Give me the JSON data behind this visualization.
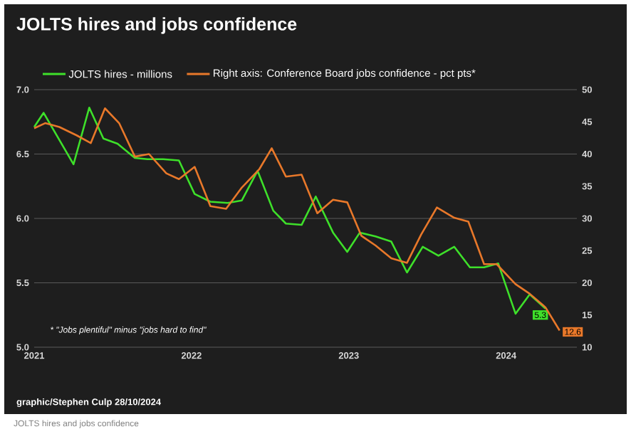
{
  "chart_data": {
    "type": "line",
    "title": "JOLTS hires and jobs confidence",
    "series": [
      {
        "name": "JOLTS hires - millions",
        "color": "#3ee02a",
        "x": [
          2021.0,
          2021.06,
          2021.25,
          2021.35,
          2021.44,
          2021.53,
          2021.64,
          2021.72,
          2021.82,
          2021.92,
          2022.02,
          2022.12,
          2022.23,
          2022.32,
          2022.42,
          2022.52,
          2022.6,
          2022.7,
          2022.79,
          2022.9,
          2022.99,
          2023.07,
          2023.17,
          2023.27,
          2023.37,
          2023.47,
          2023.57,
          2023.67,
          2023.77,
          2023.86,
          2023.95,
          2024.06,
          2024.15,
          2024.25
        ],
        "values": [
          6.71,
          6.82,
          6.42,
          6.86,
          6.62,
          6.58,
          6.47,
          6.46,
          6.46,
          6.45,
          6.19,
          6.13,
          6.12,
          6.14,
          6.37,
          6.06,
          5.96,
          5.95,
          6.17,
          5.89,
          5.74,
          5.89,
          5.86,
          5.82,
          5.58,
          5.78,
          5.71,
          5.78,
          5.62,
          5.62,
          5.65,
          5.26,
          5.41,
          5.3
        ],
        "value_labels": [
          null,
          null,
          null,
          null,
          null,
          null,
          null,
          null,
          null,
          null,
          null,
          null,
          null,
          null,
          null,
          null,
          null,
          null,
          null,
          null,
          null,
          null,
          null,
          null,
          null,
          null,
          null,
          null,
          null,
          null,
          null,
          null,
          null,
          "5.3"
        ]
      },
      {
        "name": "Right axis: Conference Board jobs confidence - pct pts*",
        "color": "#e8782a",
        "axis": "y2",
        "x": [
          2021.0,
          2021.07,
          2021.16,
          2021.27,
          2021.36,
          2021.45,
          2021.54,
          2021.64,
          2021.73,
          2021.84,
          2021.92,
          2022.02,
          2022.12,
          2022.22,
          2022.32,
          2022.43,
          2022.51,
          2022.6,
          2022.7,
          2022.8,
          2022.9,
          2022.99,
          2023.08,
          2023.17,
          2023.27,
          2023.37,
          2023.46,
          2023.56,
          2023.67,
          2023.76,
          2023.86,
          2023.94,
          2024.06,
          2024.15,
          2024.25,
          2024.34
        ],
        "values": [
          44.0,
          44.8,
          44.2,
          42.9,
          41.7,
          47.1,
          44.8,
          39.6,
          40.0,
          37.0,
          36.1,
          38.0,
          31.9,
          31.5,
          34.8,
          37.6,
          40.9,
          36.5,
          36.8,
          30.8,
          32.9,
          32.5,
          27.3,
          25.8,
          23.8,
          23.1,
          27.5,
          31.7,
          30.1,
          29.5,
          22.9,
          22.9,
          19.8,
          18.3,
          16.2,
          12.6
        ],
        "value_labels": [
          null,
          null,
          null,
          null,
          null,
          null,
          null,
          null,
          null,
          null,
          null,
          null,
          null,
          null,
          null,
          null,
          null,
          null,
          null,
          null,
          null,
          null,
          null,
          null,
          null,
          null,
          null,
          null,
          null,
          null,
          null,
          null,
          null,
          null,
          null,
          "12.6"
        ]
      }
    ],
    "xlim": [
      2021,
      2024.45
    ],
    "xticks": [
      2021,
      2022,
      2023,
      2024
    ],
    "ylim": [
      5,
      7
    ],
    "yticks": [
      {
        "value": 5,
        "label": "5.0"
      },
      {
        "value": 5.5,
        "label": "5.5"
      },
      {
        "value": 6,
        "label": "6.0"
      },
      {
        "value": 6.5,
        "label": "6.5"
      },
      {
        "value": 7,
        "label": "7.0"
      }
    ],
    "y2lim": [
      10,
      50
    ],
    "y2ticks": [
      10,
      15,
      20,
      25,
      30,
      35,
      40,
      45,
      50
    ],
    "grid": "y",
    "legend": "top",
    "annotations": [
      "* \"Jobs plentiful\" minus \"jobs hard to find\"",
      "graphic/Stephen Culp 28/10/2024",
      "JOLTS hires and jobs confidence"
    ]
  }
}
